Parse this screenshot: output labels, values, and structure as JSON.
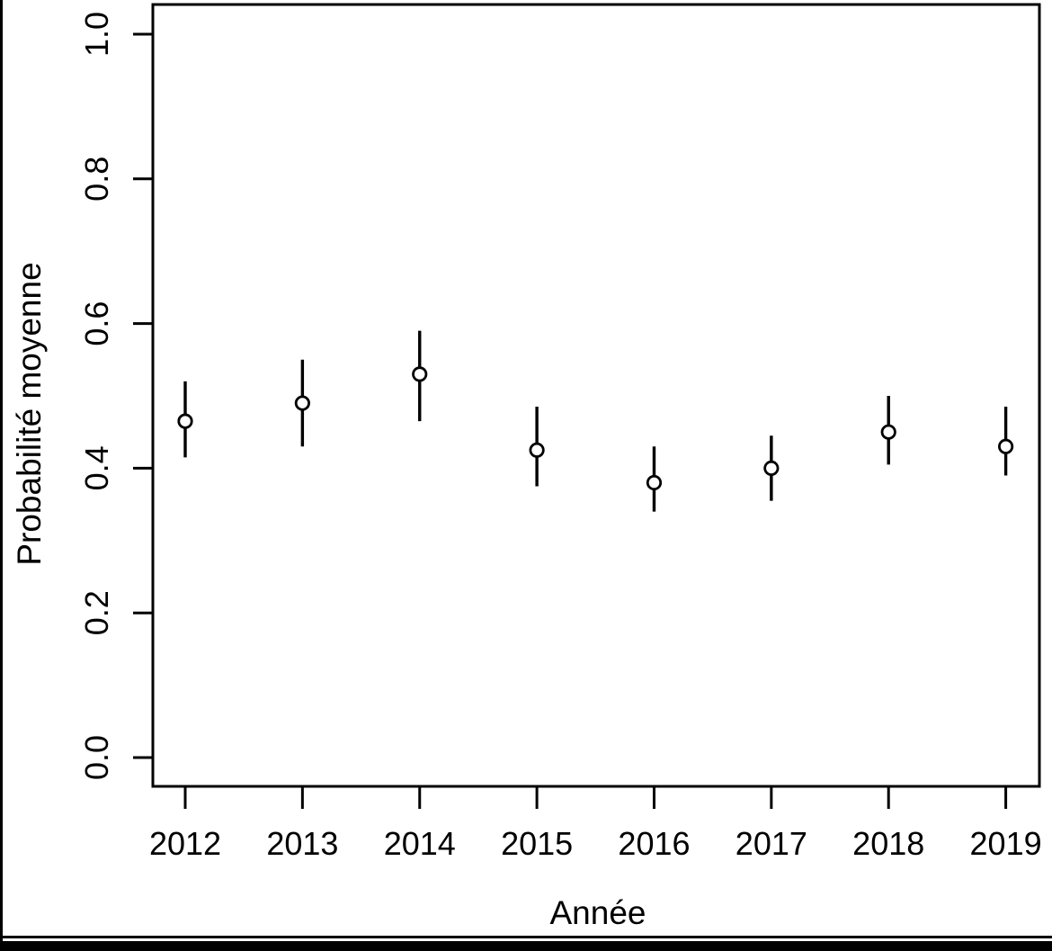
{
  "colors": {
    "foreground": "#000000",
    "background": "#ffffff"
  },
  "chart_data": {
    "type": "scatter",
    "title": "",
    "xlabel": "Année",
    "ylabel": "Probabilité moyenne",
    "x": [
      2012,
      2013,
      2014,
      2015,
      2016,
      2017,
      2018,
      2019
    ],
    "x_tick_labels": [
      "2012",
      "2013",
      "2014",
      "2015",
      "2016",
      "2017",
      "2018",
      "2019"
    ],
    "series": [
      {
        "name": "Probabilité moyenne",
        "values": [
          0.465,
          0.49,
          0.53,
          0.425,
          0.38,
          0.4,
          0.45,
          0.43
        ],
        "ci_lower": [
          0.415,
          0.43,
          0.465,
          0.375,
          0.34,
          0.355,
          0.405,
          0.39
        ],
        "ci_upper": [
          0.52,
          0.55,
          0.59,
          0.485,
          0.43,
          0.445,
          0.5,
          0.485
        ]
      }
    ],
    "ylim": [
      0.0,
      1.0
    ],
    "yticks": [
      0.0,
      0.2,
      0.4,
      0.6,
      0.8,
      1.0
    ],
    "y_tick_labels": [
      "0.0",
      "0.2",
      "0.4",
      "0.6",
      "0.8",
      "1.0"
    ],
    "grid": false,
    "legend": false,
    "error_bars": true,
    "point_style": "open-circle"
  }
}
